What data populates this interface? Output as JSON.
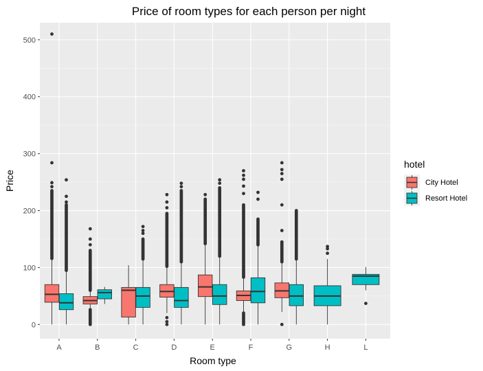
{
  "chart_data": {
    "type": "boxplot",
    "title": "Price of room types for each person per night",
    "xlabel": "Room type",
    "ylabel": "Price",
    "ylim": [
      -25,
      530
    ],
    "y_ticks": [
      0,
      100,
      200,
      300,
      400,
      500
    ],
    "categories": [
      "A",
      "B",
      "C",
      "D",
      "E",
      "F",
      "G",
      "H",
      "L"
    ],
    "legend": {
      "title": "hotel",
      "position": "right",
      "entries": [
        {
          "name": "City Hotel",
          "color": "#F8766D"
        },
        {
          "name": "Resort Hotel",
          "color": "#00BFC4"
        }
      ]
    },
    "background": "#EBEBEB",
    "grid": true,
    "series": [
      {
        "name": "City Hotel",
        "color": "#F8766D",
        "boxes": [
          {
            "category": "A",
            "lower_whisker": 0,
            "q1": 39,
            "median": 53,
            "q3": 70,
            "upper_whisker": 116,
            "outliers_range": [
              116,
              235
            ],
            "outliers": [
              249,
              242,
              284,
              510
            ]
          },
          {
            "category": "B",
            "lower_whisker": 28,
            "q1": 36,
            "median": 42,
            "q3": 49,
            "upper_whisker": 60,
            "outliers_range": [
              0,
              26,
              60,
              130
            ],
            "outliers": [
              140,
              150,
              168
            ]
          },
          {
            "category": "C",
            "lower_whisker": 0,
            "q1": 13,
            "median": 60,
            "q3": 65,
            "upper_whisker": 104,
            "outliers": []
          },
          {
            "category": "D",
            "lower_whisker": 20,
            "q1": 48,
            "median": 58,
            "q3": 70,
            "upper_whisker": 102,
            "outliers_range": [
              102,
              195
            ],
            "outliers": [
              0,
              5,
              12,
              205,
              215,
              228
            ]
          },
          {
            "category": "E",
            "lower_whisker": 0,
            "q1": 49,
            "median": 66,
            "q3": 87,
            "upper_whisker": 142,
            "outliers_range": [
              142,
              220
            ],
            "outliers": [
              228
            ]
          },
          {
            "category": "F",
            "lower_whisker": 22,
            "q1": 42,
            "median": 51,
            "q3": 59,
            "upper_whisker": 83,
            "outliers_range": [
              0,
              20,
              83,
              210
            ],
            "outliers": [
              230,
              243,
              255,
              262,
              270
            ]
          },
          {
            "category": "G",
            "lower_whisker": 22,
            "q1": 47,
            "median": 59,
            "q3": 73,
            "upper_whisker": 110,
            "outliers_range": [
              110,
              145
            ],
            "outliers": [
              0,
              165,
              210,
              255,
              265,
              272,
              284
            ]
          }
        ]
      },
      {
        "name": "Resort Hotel",
        "color": "#00BFC4",
        "boxes": [
          {
            "category": "A",
            "lower_whisker": 0,
            "q1": 26,
            "median": 38,
            "q3": 54,
            "upper_whisker": 95,
            "outliers_range": [
              95,
              210
            ],
            "outliers": [
              215,
              225,
              254
            ]
          },
          {
            "category": "B",
            "lower_whisker": 36,
            "q1": 45,
            "median": 56,
            "q3": 61,
            "upper_whisker": 66,
            "outliers": []
          },
          {
            "category": "C",
            "lower_whisker": 0,
            "q1": 30,
            "median": 50,
            "q3": 65,
            "upper_whisker": 115,
            "outliers_range": [
              115,
              150
            ],
            "outliers": [
              160,
              165,
              172
            ]
          },
          {
            "category": "D",
            "lower_whisker": 0,
            "q1": 30,
            "median": 42,
            "q3": 65,
            "upper_whisker": 110,
            "outliers_range": [
              110,
              235
            ],
            "outliers": [
              242,
              248
            ]
          },
          {
            "category": "E",
            "lower_whisker": 0,
            "q1": 35,
            "median": 50,
            "q3": 70,
            "upper_whisker": 120,
            "outliers_range": [
              120,
              240
            ],
            "outliers": [
              248,
              254
            ]
          },
          {
            "category": "F",
            "lower_whisker": 0,
            "q1": 38,
            "median": 58,
            "q3": 82,
            "upper_whisker": 140,
            "outliers_range": [
              140,
              185
            ],
            "outliers": [
              220,
              232
            ]
          },
          {
            "category": "G",
            "lower_whisker": 0,
            "q1": 33,
            "median": 50,
            "q3": 70,
            "upper_whisker": 115,
            "outliers_range": [
              115,
              200
            ],
            "outliers": []
          },
          {
            "category": "H",
            "lower_whisker": 0,
            "q1": 33,
            "median": 50,
            "q3": 68,
            "upper_whisker": 115,
            "outliers": [
              125,
              133,
              137
            ]
          },
          {
            "category": "L",
            "lower_whisker": 60,
            "q1": 70,
            "median": 85,
            "q3": 88,
            "upper_whisker": 101,
            "outliers": [
              37
            ]
          }
        ]
      }
    ]
  }
}
